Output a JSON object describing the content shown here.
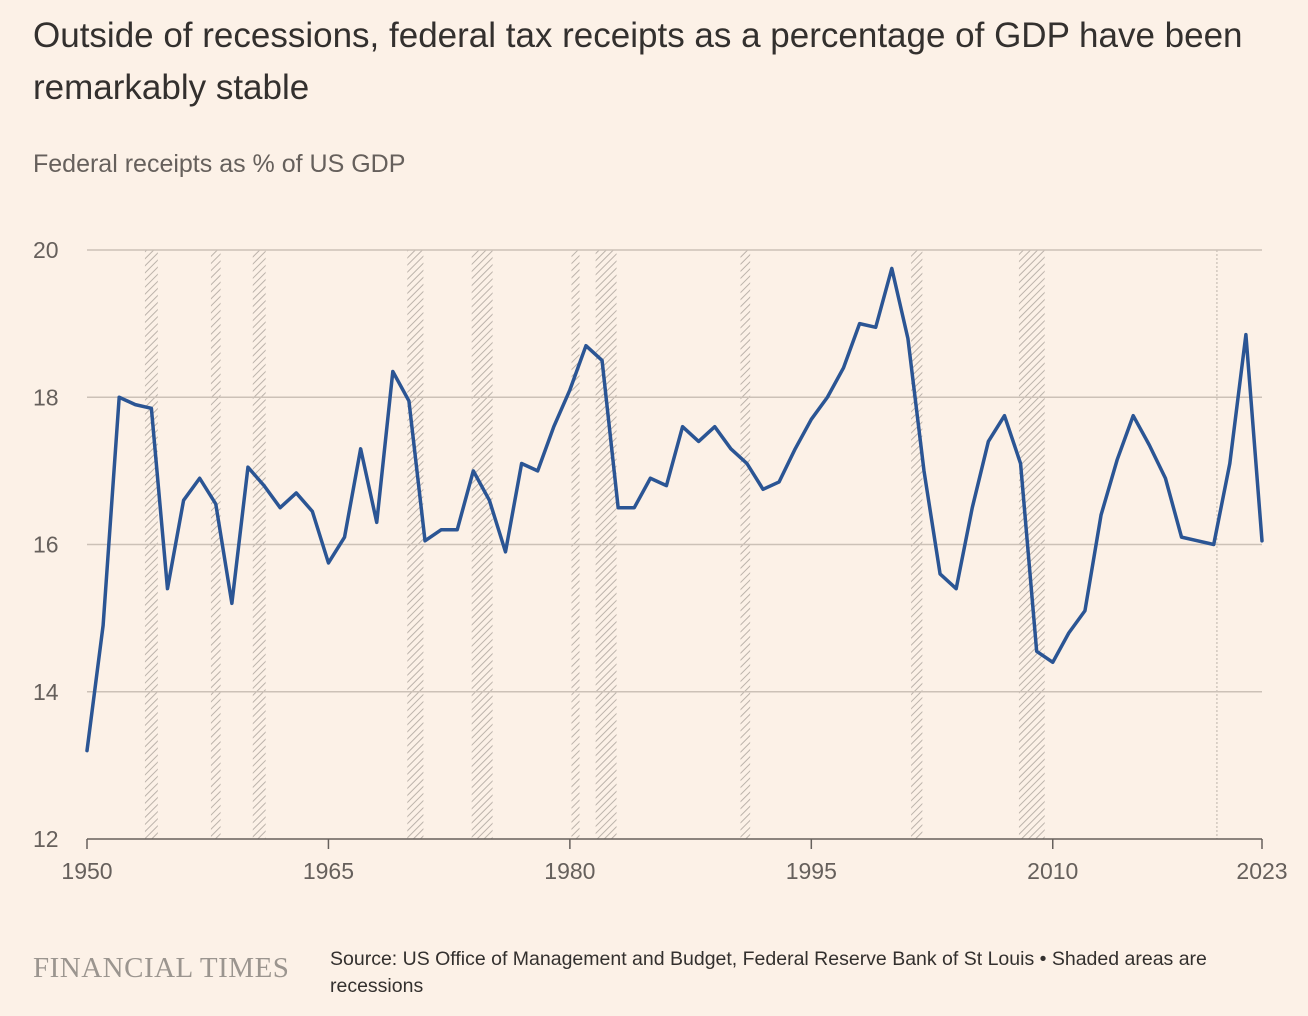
{
  "title": "Outside of recessions, federal tax receipts as a percentage of GDP have been remarkably stable",
  "subtitle": "Federal receipts as % of US GDP",
  "footer": {
    "logo": "FINANCIAL TIMES",
    "source": "Source: US Office of Management and Budget, Federal Reserve Bank of St Louis • Shaded areas are recessions"
  },
  "colors": {
    "background": "#fcf1e7",
    "line": "#2b5594",
    "grid": "#ccc1b7",
    "recession_hatch": "#bcb3ab"
  },
  "chart_data": {
    "type": "line",
    "title": "",
    "ylabel": "",
    "xlabel": "",
    "xlim": [
      1950,
      2023
    ],
    "ylim": [
      12,
      20
    ],
    "yticks": [
      20,
      18,
      16,
      14,
      12
    ],
    "xticks": [
      {
        "value": 1950,
        "label": "1950"
      },
      {
        "value": 1965,
        "label": "1965"
      },
      {
        "value": 1980,
        "label": "1980"
      },
      {
        "value": 1995,
        "label": "1995"
      },
      {
        "value": 2010,
        "label": "2010"
      },
      {
        "value": 2023,
        "label": "2023"
      }
    ],
    "grid": true,
    "series": [
      {
        "x": [
          1950,
          1951,
          1952,
          1953,
          1954,
          1955,
          1956,
          1957,
          1958,
          1959,
          1960,
          1961,
          1962,
          1963,
          1964,
          1965,
          1966,
          1967,
          1968,
          1969,
          1970,
          1971,
          1972,
          1973,
          1974,
          1975,
          1976,
          1977,
          1978,
          1979,
          1980,
          1981,
          1982,
          1983,
          1984,
          1985,
          1986,
          1987,
          1988,
          1989,
          1990,
          1991,
          1992,
          1993,
          1994,
          1995,
          1996,
          1997,
          1998,
          1999,
          2000,
          2001,
          2002,
          2003,
          2004,
          2005,
          2006,
          2007,
          2008,
          2009,
          2010,
          2011,
          2012,
          2013,
          2014,
          2015,
          2016,
          2017,
          2018,
          2019,
          2020,
          2021,
          2022,
          2023
        ],
        "values": [
          13.2,
          14.9,
          18.0,
          17.9,
          17.85,
          15.4,
          16.6,
          16.9,
          16.55,
          15.2,
          17.05,
          16.8,
          16.5,
          16.7,
          16.45,
          15.75,
          16.1,
          17.3,
          16.3,
          18.35,
          17.95,
          16.05,
          16.2,
          16.2,
          17.0,
          16.6,
          15.9,
          17.1,
          17.0,
          17.6,
          18.1,
          18.7,
          18.5,
          16.5,
          16.5,
          16.9,
          16.8,
          17.6,
          17.4,
          17.6,
          17.3,
          17.1,
          16.75,
          16.85,
          17.3,
          17.7,
          18.0,
          18.4,
          19.0,
          18.95,
          19.75,
          18.8,
          17.0,
          15.6,
          15.4,
          16.5,
          17.4,
          17.75,
          17.1,
          14.55,
          14.4,
          14.8,
          15.1,
          16.4,
          17.15,
          17.75,
          17.35,
          16.9,
          16.1,
          16.05,
          16.0,
          17.1,
          18.85,
          16.05
        ]
      }
    ],
    "recessions": [
      [
        1953.6,
        1954.4
      ],
      [
        1957.7,
        1958.3
      ],
      [
        1960.3,
        1961.1
      ],
      [
        1969.9,
        1970.9
      ],
      [
        1973.9,
        1975.2
      ],
      [
        1980.1,
        1980.6
      ],
      [
        1981.6,
        1982.9
      ],
      [
        1990.6,
        1991.2
      ],
      [
        2001.2,
        2001.9
      ],
      [
        2007.9,
        2009.5
      ],
      [
        2020.1,
        2020.3
      ]
    ]
  }
}
